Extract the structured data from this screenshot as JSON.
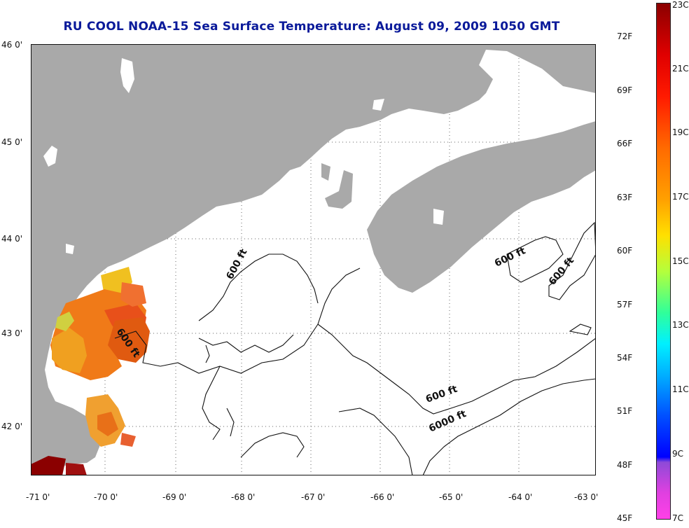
{
  "title": "RU COOL  NOAA-15  Sea Surface Temperature:  August 09, 2009 1050 GMT",
  "axes": {
    "lat_labels": [
      "46 0'",
      "45 0'",
      "44 0'",
      "43 0'",
      "42 0'"
    ],
    "lon_labels": [
      "-71 0'",
      "-70 0'",
      "-69 0'",
      "-68 0'",
      "-67 0'",
      "-66 0'",
      "-65 0'",
      "-64 0'",
      "-63 0'"
    ]
  },
  "contour_labels": {
    "c600_a": "600 ft",
    "c600_b": "600 ft",
    "c600_c": "600 ft",
    "c600_d": "600 ft",
    "c600_e": "600 ft",
    "c6000": "6000 ft"
  },
  "colorbar": {
    "fahrenheit": [
      "72F",
      "69F",
      "66F",
      "63F",
      "60F",
      "57F",
      "54F",
      "51F",
      "48F",
      "45F"
    ],
    "celsius": [
      "23C",
      "21C",
      "19C",
      "17C",
      "15C",
      "13C",
      "11C",
      "9C",
      "7C"
    ]
  },
  "colors": {
    "land": "#a9a9a9",
    "title": "#0a1a9a",
    "warm": "#e05a10",
    "hot": "#8b0000",
    "cool": "#f0d020"
  }
}
